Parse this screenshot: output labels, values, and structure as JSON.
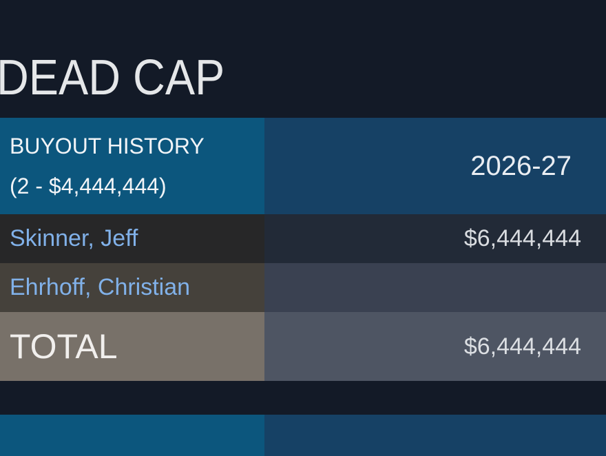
{
  "page": {
    "title": "DEAD CAP"
  },
  "buyout_table": {
    "header": {
      "title": "BUYOUT HISTORY",
      "summary": "(2 - $4,444,444)",
      "season": "2026-27"
    },
    "rows": [
      {
        "player": "Skinner, Jeff",
        "amount": "$6,444,444"
      },
      {
        "player": "Ehrhoff, Christian",
        "amount": ""
      }
    ],
    "total": {
      "label": "TOTAL",
      "amount": "$6,444,444"
    }
  },
  "colors": {
    "page_background": "#131a27",
    "section_header_left": "#0c567d",
    "section_header_right": "#164165",
    "row1_left": "#272728",
    "row1_right": "#222a37",
    "row2_left": "#45413b",
    "row2_right": "#3a4151",
    "total_left": "#787169",
    "total_right": "#4e5563",
    "player_link": "#81b1e9",
    "title_text": "#e5e7e9"
  }
}
